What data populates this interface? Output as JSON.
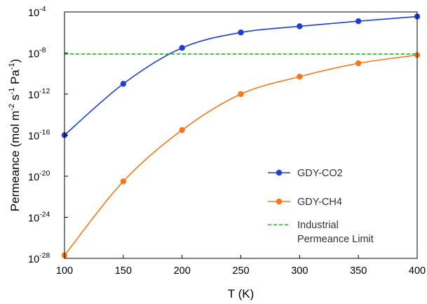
{
  "chart_data": {
    "type": "line",
    "title": "",
    "xlabel": "T (K)",
    "ylabel": {
      "base": "Permeance (mol m",
      "sup1": "-2",
      "mid1": " s",
      "sup2": "-1",
      "mid2": " Pa",
      "sup3": "-1",
      "end": ")"
    },
    "x": [
      100,
      150,
      200,
      250,
      300,
      350,
      400
    ],
    "xlim": [
      100,
      400
    ],
    "xticks": [
      "100",
      "150",
      "200",
      "250",
      "300",
      "350",
      "400"
    ],
    "yscale": "log",
    "ylim_exponent": [
      -28,
      -4
    ],
    "yticks": [
      {
        "base": "10",
        "exp": "-28",
        "e": -28
      },
      {
        "base": "10",
        "exp": "-24",
        "e": -24
      },
      {
        "base": "10",
        "exp": "-20",
        "e": -20
      },
      {
        "base": "10",
        "exp": "-16",
        "e": -16
      },
      {
        "base": "10",
        "exp": "-12",
        "e": -12
      },
      {
        "base": "10",
        "exp": "-8",
        "e": -8
      },
      {
        "base": "10",
        "exp": "-4",
        "e": -4
      }
    ],
    "grid": false,
    "legend_position": "lower-right",
    "series": [
      {
        "name": "GDY-CO2",
        "color": "#1f3fd1",
        "style": "solid-markers",
        "log10_values": [
          -16.0,
          -11.0,
          -7.5,
          -6.0,
          -5.4,
          -4.9,
          -4.45
        ]
      },
      {
        "name": "GDY-CH4",
        "color": "#f4781f",
        "style": "solid-markers",
        "log10_values": [
          -27.7,
          -20.5,
          -15.5,
          -12.0,
          -10.3,
          -9.0,
          -8.2
        ]
      },
      {
        "name": "Industrial\nPermeance Limit",
        "color": "#27b327",
        "style": "dashed",
        "log10_values": [
          -8.1,
          -8.1
        ]
      }
    ]
  }
}
